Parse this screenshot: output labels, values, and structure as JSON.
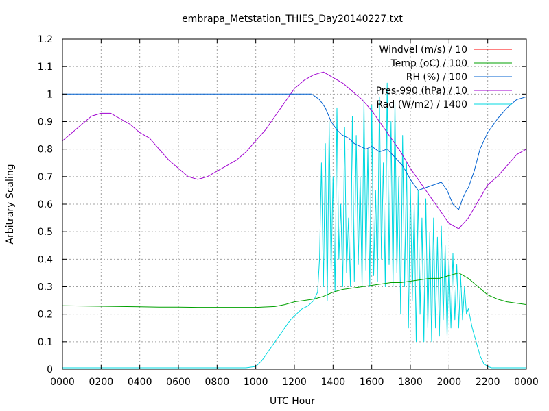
{
  "chart_data": {
    "type": "line",
    "title": "embrapa_Metstation_THIES_Day20140227.txt",
    "xlabel": "UTC Hour",
    "ylabel": "Arbitrary Scaling",
    "xlim": [
      0,
      24
    ],
    "ylim": [
      0,
      1.2
    ],
    "grid": true,
    "legend_position": "top-right",
    "x_tick_labels": [
      "0000",
      "0200",
      "0400",
      "0600",
      "0800",
      "1000",
      "1200",
      "1400",
      "1600",
      "1800",
      "2000",
      "2200",
      "0000"
    ],
    "y_tick_labels": [
      "0",
      "0.1",
      "0.2",
      "0.3",
      "0.4",
      "0.5",
      "0.6",
      "0.7",
      "0.8",
      "0.9",
      "1",
      "1.1",
      "1.2"
    ],
    "series": [
      {
        "name": "Windvel (m/s) / 10",
        "color": "#ff0000",
        "x": [],
        "values": []
      },
      {
        "name": "Temp (oC) / 100",
        "color": "#00a000",
        "x": [
          0,
          1,
          2,
          3,
          4,
          5,
          6,
          7,
          8,
          9,
          10,
          11,
          11.5,
          12,
          12.5,
          13,
          13.5,
          14,
          14.5,
          15,
          15.5,
          16,
          16.5,
          17,
          17.5,
          18,
          18.5,
          19,
          19.5,
          20,
          20.5,
          21,
          21.5,
          22,
          22.5,
          23,
          23.5,
          24
        ],
        "values": [
          0.231,
          0.23,
          0.229,
          0.228,
          0.227,
          0.226,
          0.226,
          0.225,
          0.225,
          0.225,
          0.225,
          0.228,
          0.235,
          0.245,
          0.25,
          0.255,
          0.265,
          0.28,
          0.29,
          0.295,
          0.3,
          0.305,
          0.31,
          0.315,
          0.315,
          0.32,
          0.325,
          0.33,
          0.33,
          0.34,
          0.35,
          0.33,
          0.3,
          0.27,
          0.255,
          0.245,
          0.24,
          0.235
        ]
      },
      {
        "name": "RH (%) / 100",
        "color": "#0060d0",
        "x": [
          0,
          12.9,
          13.3,
          13.6,
          13.9,
          14.2,
          14.5,
          14.8,
          15.1,
          15.4,
          15.7,
          16.0,
          16.4,
          16.8,
          17.2,
          17.6,
          18.0,
          18.4,
          18.8,
          19.2,
          19.6,
          19.9,
          20.2,
          20.5,
          20.7,
          20.9,
          21.0,
          21.3,
          21.6,
          22.0,
          22.5,
          23.0,
          23.5,
          24
        ],
        "values": [
          1.0,
          1.0,
          0.98,
          0.95,
          0.9,
          0.87,
          0.85,
          0.84,
          0.82,
          0.81,
          0.8,
          0.81,
          0.79,
          0.8,
          0.77,
          0.74,
          0.69,
          0.65,
          0.66,
          0.67,
          0.68,
          0.65,
          0.6,
          0.58,
          0.62,
          0.65,
          0.66,
          0.72,
          0.8,
          0.86,
          0.91,
          0.95,
          0.98,
          0.99
        ]
      },
      {
        "name": "Pres-990 (hPa) / 10",
        "color": "#a000d0",
        "x": [
          0,
          0.5,
          1,
          1.5,
          2,
          2.5,
          3,
          3.5,
          4,
          4.5,
          5,
          5.5,
          6,
          6.5,
          7,
          7.5,
          8,
          8.5,
          9,
          9.5,
          10,
          10.5,
          11,
          11.5,
          12,
          12.5,
          13,
          13.5,
          14,
          14.5,
          15,
          15.5,
          16,
          16.5,
          17,
          17.5,
          18,
          18.5,
          19,
          19.5,
          20,
          20.5,
          21,
          21.5,
          22,
          22.5,
          23,
          23.5,
          24
        ],
        "values": [
          0.83,
          0.86,
          0.89,
          0.92,
          0.93,
          0.93,
          0.91,
          0.89,
          0.86,
          0.84,
          0.8,
          0.76,
          0.73,
          0.7,
          0.69,
          0.7,
          0.72,
          0.74,
          0.76,
          0.79,
          0.83,
          0.87,
          0.92,
          0.97,
          1.02,
          1.05,
          1.07,
          1.08,
          1.06,
          1.04,
          1.01,
          0.98,
          0.94,
          0.89,
          0.84,
          0.79,
          0.73,
          0.68,
          0.63,
          0.58,
          0.53,
          0.51,
          0.55,
          0.61,
          0.67,
          0.7,
          0.74,
          0.78,
          0.8
        ]
      },
      {
        "name": "Rad (W/m2) / 1400",
        "color": "#00d8e0",
        "x": [
          0,
          9.5,
          10.0,
          10.3,
          10.6,
          10.9,
          11.2,
          11.5,
          11.8,
          12.1,
          12.4,
          12.7,
          13.0,
          13.2,
          13.3,
          13.4,
          13.5,
          13.6,
          13.7,
          13.8,
          13.9,
          14.0,
          14.1,
          14.2,
          14.3,
          14.4,
          14.5,
          14.6,
          14.7,
          14.8,
          14.9,
          15.0,
          15.1,
          15.2,
          15.3,
          15.4,
          15.5,
          15.6,
          15.7,
          15.8,
          15.9,
          16.0,
          16.1,
          16.2,
          16.3,
          16.4,
          16.5,
          16.6,
          16.7,
          16.8,
          16.9,
          17.0,
          17.1,
          17.2,
          17.3,
          17.4,
          17.5,
          17.6,
          17.7,
          17.8,
          17.9,
          18.0,
          18.1,
          18.2,
          18.3,
          18.4,
          18.5,
          18.6,
          18.7,
          18.8,
          18.9,
          19.0,
          19.1,
          19.2,
          19.3,
          19.4,
          19.5,
          19.6,
          19.7,
          19.8,
          19.9,
          20.0,
          20.1,
          20.2,
          20.3,
          20.4,
          20.5,
          20.6,
          20.7,
          20.8,
          20.9,
          21.0,
          21.2,
          21.4,
          21.6,
          21.8,
          22.0,
          22.2,
          22.5,
          23.0,
          24
        ],
        "values": [
          0.005,
          0.005,
          0.01,
          0.03,
          0.06,
          0.09,
          0.12,
          0.15,
          0.18,
          0.2,
          0.22,
          0.23,
          0.25,
          0.28,
          0.4,
          0.75,
          0.3,
          0.82,
          0.25,
          0.9,
          0.35,
          0.7,
          0.28,
          0.95,
          0.4,
          0.6,
          0.3,
          0.88,
          0.35,
          0.55,
          0.3,
          0.92,
          0.32,
          0.85,
          0.38,
          0.7,
          0.3,
          0.98,
          0.36,
          0.8,
          0.3,
          0.96,
          0.34,
          0.65,
          0.32,
          0.99,
          0.4,
          0.75,
          0.3,
          1.04,
          0.38,
          0.9,
          0.3,
          0.98,
          0.35,
          0.7,
          0.2,
          0.85,
          0.3,
          0.75,
          0.15,
          0.68,
          0.25,
          0.6,
          0.1,
          0.65,
          0.2,
          0.55,
          0.1,
          0.62,
          0.15,
          0.5,
          0.1,
          0.55,
          0.15,
          0.48,
          0.12,
          0.52,
          0.18,
          0.45,
          0.12,
          0.4,
          0.15,
          0.42,
          0.18,
          0.38,
          0.15,
          0.34,
          0.18,
          0.3,
          0.2,
          0.22,
          0.15,
          0.1,
          0.05,
          0.02,
          0.01,
          0.005,
          0.005,
          0.005,
          0.005
        ]
      }
    ]
  }
}
